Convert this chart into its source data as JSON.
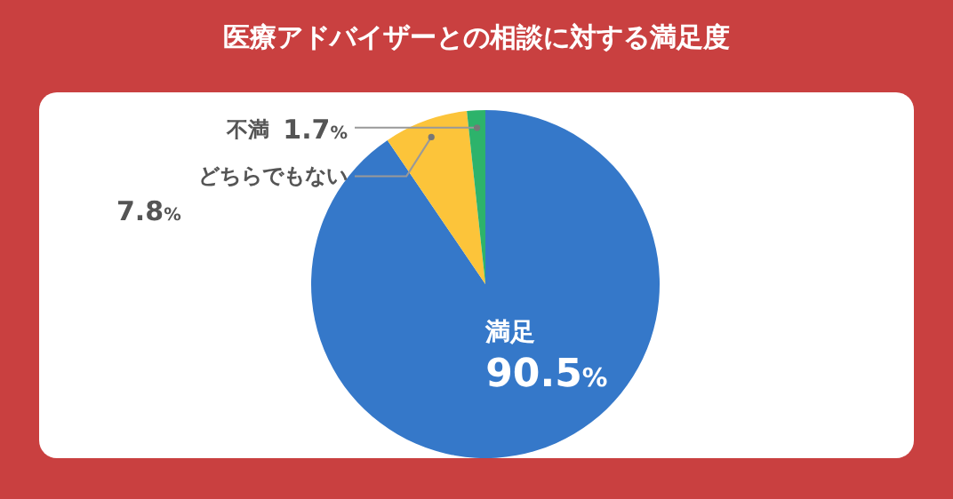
{
  "chart_data": {
    "type": "pie",
    "title": "医療アドバイザーとの相談に対する満足度",
    "categories": [
      "満足",
      "どちらでもない",
      "不満"
    ],
    "values": [
      90.5,
      7.8,
      1.7
    ],
    "colors": [
      "#3578c9",
      "#fcc43a",
      "#2db36b"
    ],
    "value_labels": [
      "90.5%",
      "7.8%",
      "1.7%"
    ],
    "legend": false
  }
}
